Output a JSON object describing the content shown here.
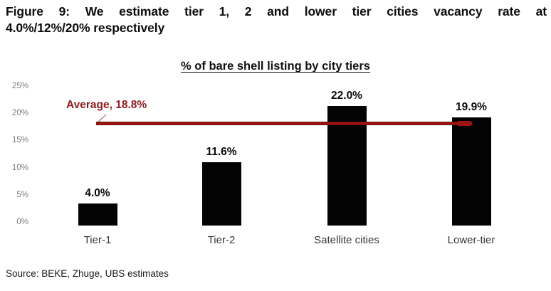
{
  "figure": {
    "title_line1": "Figure 9: We estimate tier 1, 2 and lower tier cities vacancy rate at",
    "title_line2": "4.0%/12%/20% respectively"
  },
  "chart_data": {
    "type": "bar",
    "title": "% of bare shell listing by city tiers",
    "categories": [
      "Tier-1",
      "Tier-2",
      "Satellite cities",
      "Lower-tier"
    ],
    "values": [
      4.0,
      11.6,
      22.0,
      19.9
    ],
    "value_labels": [
      "4.0%",
      "11.6%",
      "22.0%",
      "19.9%"
    ],
    "xlabel": "",
    "ylabel": "",
    "ylim": [
      0,
      25
    ],
    "yticks": [
      0,
      5,
      10,
      15,
      20,
      25
    ],
    "ytick_labels": [
      "0%",
      "5%",
      "10%",
      "15%",
      "20%",
      "25%"
    ],
    "grid": false,
    "legend_position": "none",
    "bar_color": "#040404",
    "average_line": {
      "value": 18.8,
      "label": "Average, 18.8%",
      "color": "#9e1313"
    }
  },
  "colors": {
    "accent_red": "#9e1313",
    "bar": "#040404",
    "ytick_gray": "#7b7b7b",
    "xtick_gray": "#383838"
  },
  "source": {
    "text": "Source: BEKE, Zhuge, UBS estimates"
  }
}
